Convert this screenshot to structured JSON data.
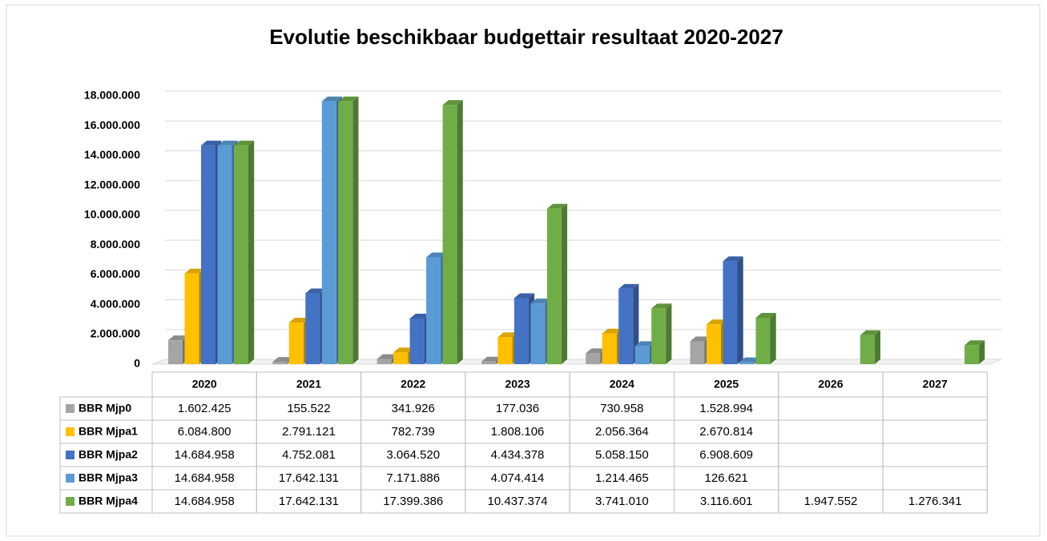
{
  "chart_data": {
    "type": "bar3d",
    "title": "Evolutie beschikbaar budgettair resultaat 2020-2027",
    "categories": [
      "2020",
      "2021",
      "2022",
      "2023",
      "2024",
      "2025",
      "2026",
      "2027"
    ],
    "series": [
      {
        "name": "BBR Mjp0",
        "color": "#a5a5a5",
        "values": [
          1602425,
          155522,
          341926,
          177036,
          730958,
          1528994,
          null,
          null
        ],
        "value_labels": [
          "1.602.425",
          "155.522",
          "341.926",
          "177.036",
          "730.958",
          "1.528.994",
          null,
          null
        ]
      },
      {
        "name": "BBR Mjpa1",
        "color": "#ffc000",
        "values": [
          6084800,
          2791121,
          782739,
          1808106,
          2056364,
          2670814,
          null,
          null
        ],
        "value_labels": [
          "6.084.800",
          "2.791.121",
          "782.739",
          "1.808.106",
          "2.056.364",
          "2.670.814",
          null,
          null
        ]
      },
      {
        "name": "BBR Mjpa2",
        "color": "#4472c4",
        "values": [
          14684958,
          4752081,
          3064520,
          4434378,
          5058150,
          6908609,
          null,
          null
        ],
        "value_labels": [
          "14.684.958",
          "4.752.081",
          "3.064.520",
          "4.434.378",
          "5.058.150",
          "6.908.609",
          null,
          null
        ]
      },
      {
        "name": "BBR Mjpa3",
        "color": "#5b9bd5",
        "values": [
          14684958,
          17642131,
          7171886,
          4074414,
          1214465,
          126621,
          null,
          null
        ],
        "value_labels": [
          "14.684.958",
          "17.642.131",
          "7.171.886",
          "4.074.414",
          "1.214.465",
          "126.621",
          null,
          null
        ]
      },
      {
        "name": "BBR Mjpa4",
        "color": "#70ad47",
        "values": [
          14684958,
          17642131,
          17399386,
          10437374,
          3741010,
          3116601,
          1947552,
          1276341
        ],
        "value_labels": [
          "14.684.958",
          "17.642.131",
          "17.399.386",
          "10.437.374",
          "3.741.010",
          "3.116.601",
          "1.947.552",
          "1.276.341"
        ]
      }
    ],
    "ylim": [
      0,
      18000000
    ],
    "yticks": [
      0,
      {
        "value": 2000000,
        "label": "2.000.000"
      },
      {
        "value": 4000000,
        "label": "4.000.000"
      },
      {
        "value": 6000000,
        "label": "6.000.000"
      },
      {
        "value": 8000000,
        "label": "8.000.000"
      },
      {
        "value": 10000000,
        "label": "10.000.000"
      },
      {
        "value": 12000000,
        "label": "12.000.000"
      },
      {
        "value": 14000000,
        "label": "14.000.000"
      },
      {
        "value": 16000000,
        "label": "16.000.000"
      },
      {
        "value": 18000000,
        "label": "18.000.000"
      }
    ],
    "grid": true
  }
}
